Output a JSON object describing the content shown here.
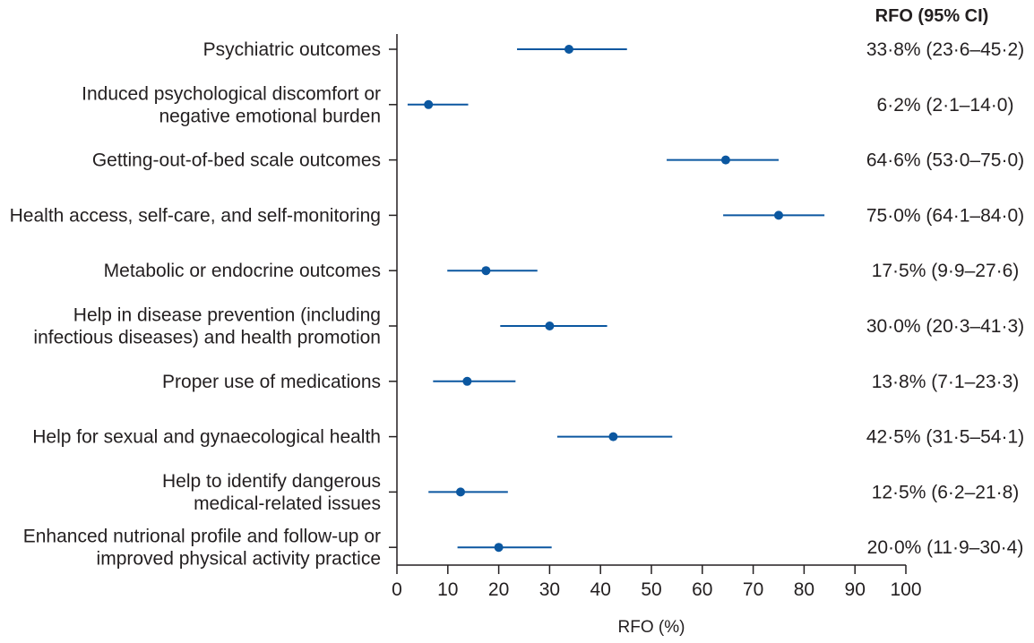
{
  "chart_data": {
    "type": "forest",
    "column_header": "RFO (95% CI)",
    "xlabel": "RFO (%)",
    "xlim": [
      0,
      100
    ],
    "xticks": [
      0,
      10,
      20,
      30,
      40,
      50,
      60,
      70,
      80,
      90,
      100
    ],
    "grid": false,
    "marker_color": "#0b57a0",
    "line_color": "#0b57a0",
    "rows": [
      {
        "label": [
          "Psychiatric outcomes"
        ],
        "value": 33.8,
        "low": 23.6,
        "high": 45.2,
        "ci_text": "33·8% (23·6–45·2)"
      },
      {
        "label": [
          "Induced psychological discomfort or",
          "negative emotional burden"
        ],
        "value": 6.2,
        "low": 2.1,
        "high": 14.0,
        "ci_text": "6·2% (2·1–14·0)"
      },
      {
        "label": [
          "Getting-out-of-bed scale outcomes"
        ],
        "value": 64.6,
        "low": 53.0,
        "high": 75.0,
        "ci_text": "64·6% (53·0–75·0)"
      },
      {
        "label": [
          "Health access, self-care, and self-monitoring"
        ],
        "value": 75.0,
        "low": 64.1,
        "high": 84.0,
        "ci_text": "75·0% (64·1–84·0)"
      },
      {
        "label": [
          "Metabolic or endocrine outcomes"
        ],
        "value": 17.5,
        "low": 9.9,
        "high": 27.6,
        "ci_text": "17·5% (9·9–27·6)"
      },
      {
        "label": [
          "Help in disease prevention (including",
          "infectious diseases) and health promotion"
        ],
        "value": 30.0,
        "low": 20.3,
        "high": 41.3,
        "ci_text": "30·0% (20·3–41·3)"
      },
      {
        "label": [
          "Proper use of medications"
        ],
        "value": 13.8,
        "low": 7.1,
        "high": 23.3,
        "ci_text": "13·8% (7·1–23·3)"
      },
      {
        "label": [
          "Help for sexual and gynaecological health"
        ],
        "value": 42.5,
        "low": 31.5,
        "high": 54.1,
        "ci_text": "42·5% (31·5–54·1)"
      },
      {
        "label": [
          "Help to identify dangerous",
          "medical-related issues"
        ],
        "value": 12.5,
        "low": 6.2,
        "high": 21.8,
        "ci_text": "12·5% (6·2–21·8)"
      },
      {
        "label": [
          "Enhanced nutrional profile and follow-up or",
          "improved physical activity practice"
        ],
        "value": 20.0,
        "low": 11.9,
        "high": 30.4,
        "ci_text": "20·0% (11·9–30·4)"
      }
    ]
  }
}
